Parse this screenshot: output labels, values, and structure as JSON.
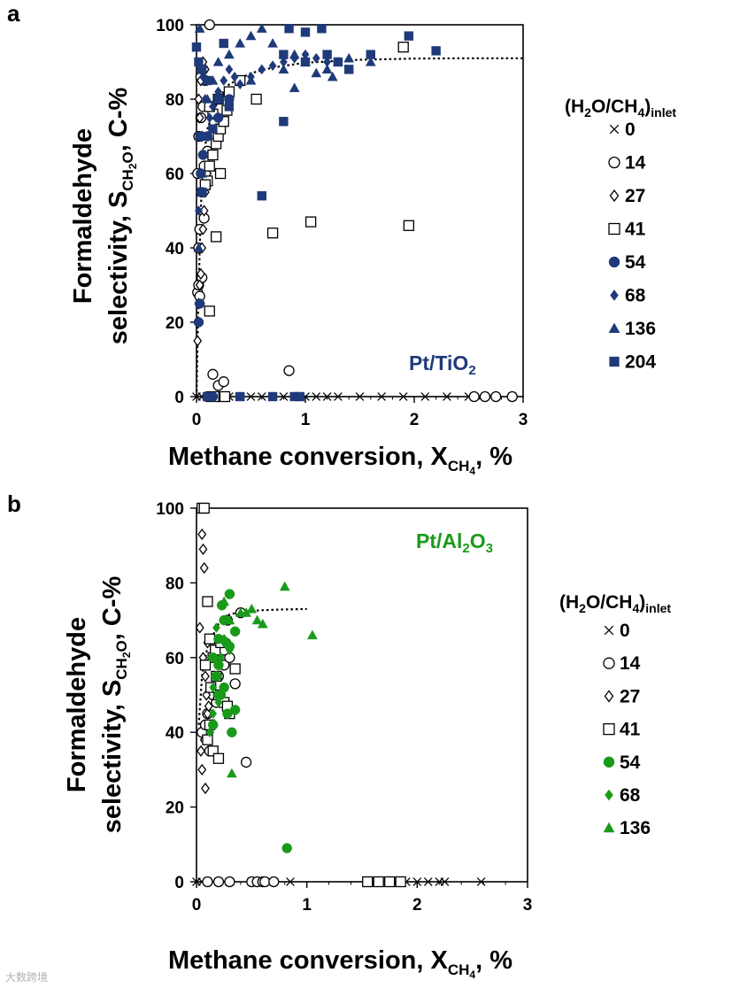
{
  "colors": {
    "tio2": "#1f3a7a",
    "al2o3": "#1a9a1a",
    "ink": "#000000"
  },
  "legend_title": {
    "prefix": "(H",
    "s1": "2",
    "mid": "O/CH",
    "s2": "4",
    "close": ")",
    "sub": "inlet"
  },
  "watermark": "大数跨境",
  "chart_data": [
    {
      "panel_label": "a",
      "type": "scatter",
      "title": "",
      "catalyst": {
        "base": "Pt/TiO",
        "sub": "2",
        "sub2": ""
      },
      "xlabel": {
        "main": "Methane conversion, X",
        "sub": "CH",
        "subsub": "4",
        "tail": ", %"
      },
      "ylabel": {
        "line1": "Formaldehyde",
        "line2_main": "selectivity, S",
        "line2_sub": "CH",
        "line2_subsub": "2",
        "line2_subtail": "O",
        "line2_tail": ", C-%"
      },
      "xlim": [
        0,
        3
      ],
      "ylim": [
        0,
        100
      ],
      "xticks": [
        0,
        1,
        2,
        3
      ],
      "yticks": [
        0,
        20,
        40,
        60,
        80,
        100
      ],
      "trendline": [
        [
          0,
          0
        ],
        [
          0.02,
          30
        ],
        [
          0.05,
          60
        ],
        [
          0.1,
          72
        ],
        [
          0.2,
          80
        ],
        [
          0.3,
          84
        ],
        [
          0.5,
          87
        ],
        [
          0.7,
          88.5
        ],
        [
          1.0,
          89.8
        ],
        [
          1.5,
          90.6
        ],
        [
          2.0,
          90.9
        ],
        [
          2.5,
          91
        ],
        [
          3.0,
          91
        ]
      ],
      "series": [
        {
          "name": "0",
          "marker": "x",
          "color": "#000000",
          "x": [
            0.0,
            0.05,
            0.1,
            0.3,
            0.5,
            0.6,
            0.7,
            0.8,
            0.9,
            1.0,
            1.1,
            1.2,
            1.3,
            1.5,
            1.7,
            1.9,
            2.1,
            2.3,
            2.5,
            2.7,
            2.9
          ],
          "y": [
            0,
            0,
            0,
            0,
            0,
            0,
            0,
            0,
            0,
            0,
            0,
            0,
            0,
            0,
            0,
            0,
            0,
            0,
            0,
            0,
            0
          ]
        },
        {
          "name": "14",
          "marker": "circle-open",
          "color": "#000000",
          "x": [
            0.01,
            0.02,
            0.03,
            0.05,
            0.07,
            0.1,
            0.02,
            0.04,
            0.06,
            0.08,
            0.12,
            0.15,
            0.2,
            0.25,
            0.85,
            0.03,
            0.05,
            0.07,
            0.02,
            0.01,
            0.04,
            0.06,
            2.55,
            2.65,
            2.75,
            2.9,
            0.1,
            0.2
          ],
          "y": [
            28,
            30,
            45,
            55,
            62,
            66,
            70,
            75,
            78,
            85,
            100,
            6,
            3,
            4,
            7,
            27,
            32,
            48,
            40,
            60,
            86,
            88,
            0,
            0,
            0,
            0,
            0,
            0
          ]
        },
        {
          "name": "27",
          "marker": "diamond-open",
          "color": "#000000",
          "x": [
            0.01,
            0.02,
            0.03,
            0.04,
            0.05,
            0.06,
            0.07,
            0.08,
            0.1,
            0.12,
            0.05,
            0.03,
            0.02,
            0.04,
            0.08,
            0.06
          ],
          "y": [
            15,
            25,
            30,
            33,
            40,
            45,
            50,
            55,
            60,
            65,
            70,
            75,
            80,
            85,
            88,
            90
          ]
        },
        {
          "name": "41",
          "marker": "square-open",
          "color": "#000000",
          "x": [
            0.1,
            0.12,
            0.15,
            0.18,
            0.2,
            0.22,
            0.25,
            0.15,
            0.12,
            0.2,
            0.3,
            0.4,
            0.55,
            0.7,
            1.05,
            1.95,
            1.9,
            0.18,
            0.22,
            0.28,
            0.12,
            0.08,
            0.26,
            0.16
          ],
          "y": [
            58,
            62,
            65,
            68,
            70,
            72,
            74,
            76,
            78,
            80,
            82,
            85,
            80,
            44,
            47,
            46,
            94,
            43,
            60,
            77,
            23,
            57,
            0,
            0
          ]
        },
        {
          "name": "54",
          "marker": "circle-filled",
          "color": "#1f3a7a",
          "x": [
            0.02,
            0.03,
            0.05,
            0.04,
            0.06,
            0.1,
            0.2,
            0.3,
            0.15
          ],
          "y": [
            20,
            25,
            55,
            60,
            65,
            70,
            75,
            80,
            0
          ]
        },
        {
          "name": "68",
          "marker": "diamond-filled",
          "color": "#1f3a7a",
          "x": [
            0.02,
            0.03,
            0.05,
            0.07,
            0.1,
            0.12,
            0.15,
            0.2,
            0.25,
            0.3,
            0.35,
            0.4,
            0.5,
            0.6,
            0.7,
            0.8,
            0.9,
            1.0,
            1.1,
            1.2,
            0.06,
            0.08
          ],
          "y": [
            50,
            55,
            60,
            65,
            70,
            75,
            78,
            82,
            85,
            88,
            86,
            84,
            86,
            88,
            89,
            90,
            91,
            92,
            91,
            90,
            86,
            80
          ]
        },
        {
          "name": "136",
          "marker": "triangle-filled",
          "color": "#1f3a7a",
          "x": [
            0.02,
            0.05,
            0.1,
            0.15,
            0.2,
            0.3,
            0.4,
            0.5,
            0.6,
            0.7,
            0.8,
            0.9,
            1.0,
            1.1,
            1.2,
            1.3,
            1.4,
            1.6,
            0.03,
            0.5,
            0.9,
            1.25,
            0.05
          ],
          "y": [
            40,
            70,
            80,
            85,
            90,
            92,
            95,
            97,
            99,
            95,
            88,
            92,
            90,
            87,
            88,
            90,
            91,
            90,
            99,
            85,
            83,
            86,
            60
          ]
        },
        {
          "name": "204",
          "marker": "square-filled",
          "color": "#1f3a7a",
          "x": [
            0.0,
            0.02,
            0.05,
            0.1,
            0.2,
            0.3,
            0.6,
            0.8,
            0.85,
            1.0,
            1.15,
            1.3,
            1.6,
            1.95,
            2.2,
            0.03,
            0.05,
            0.1,
            0.12,
            0.9,
            0.95,
            1.2,
            1.4,
            0.15,
            0.25,
            0.4,
            0.7,
            0.8,
            1.0
          ],
          "y": [
            94,
            90,
            88,
            85,
            80,
            78,
            54,
            74,
            99,
            98,
            99,
            90,
            92,
            97,
            93,
            70,
            55,
            0,
            0,
            0,
            0,
            92,
            88,
            72,
            95,
            0,
            0,
            92,
            90
          ]
        }
      ]
    },
    {
      "panel_label": "b",
      "type": "scatter",
      "title": "",
      "catalyst": {
        "base": "Pt/Al",
        "sub": "2",
        "mid": "O",
        "sub2": "3"
      },
      "xlabel": {
        "main": "Methane conversion, X",
        "sub": "CH",
        "subsub": "4",
        "tail": ", %"
      },
      "ylabel": {
        "line1": "Formaldehyde",
        "line2_main": "selectivity, S",
        "line2_sub": "CH",
        "line2_subsub": "2",
        "line2_subtail": "O",
        "line2_tail": ", C-%"
      },
      "xlim": [
        0,
        3
      ],
      "ylim": [
        0,
        100
      ],
      "xticks": [
        0,
        1,
        2,
        3
      ],
      "yticks": [
        0,
        20,
        40,
        60,
        80,
        100
      ],
      "trendline": [
        [
          0.02,
          42
        ],
        [
          0.05,
          55
        ],
        [
          0.1,
          63
        ],
        [
          0.2,
          69
        ],
        [
          0.3,
          71.5
        ],
        [
          0.4,
          72.3
        ],
        [
          0.6,
          72.7
        ],
        [
          0.8,
          72.9
        ],
        [
          1.0,
          73
        ]
      ],
      "series": [
        {
          "name": "0",
          "marker": "x",
          "color": "#000000",
          "x": [
            0.0,
            0.05,
            0.1,
            0.2,
            0.3,
            0.5,
            0.6,
            0.85,
            1.55,
            1.6,
            1.65,
            1.7,
            1.75,
            1.8,
            1.9,
            2.0,
            2.1,
            2.2,
            2.25,
            2.58
          ],
          "y": [
            0,
            0,
            0,
            0,
            0,
            0,
            0,
            0,
            0,
            0,
            0,
            0,
            0,
            0,
            0,
            0,
            0,
            0,
            0,
            0
          ]
        },
        {
          "name": "14",
          "marker": "circle-open",
          "color": "#000000",
          "x": [
            0.05,
            0.1,
            0.15,
            0.2,
            0.25,
            0.3,
            0.35,
            0.4,
            0.45,
            0.12,
            0.18,
            0.22,
            0.08,
            0.28,
            0.1,
            0.2,
            0.3,
            0.5,
            0.55,
            0.6,
            0.62,
            0.7,
            0.25
          ],
          "y": [
            40,
            45,
            50,
            55,
            58,
            60,
            53,
            72,
            32,
            35,
            48,
            63,
            42,
            70,
            0,
            0,
            0,
            0,
            0,
            0,
            0,
            0,
            62
          ]
        },
        {
          "name": "27",
          "marker": "diamond-open",
          "color": "#000000",
          "x": [
            0.05,
            0.06,
            0.07,
            0.08,
            0.09,
            0.1,
            0.12,
            0.04,
            0.05,
            0.06,
            0.07,
            0.08,
            0.1,
            0.03,
            0.11
          ],
          "y": [
            93,
            89,
            84,
            55,
            50,
            45,
            40,
            35,
            30,
            60,
            38,
            25,
            64,
            68,
            47
          ]
        },
        {
          "name": "41",
          "marker": "square-open",
          "color": "#000000",
          "x": [
            0.05,
            0.07,
            0.1,
            0.12,
            0.15,
            0.18,
            0.2,
            0.25,
            0.3,
            0.12,
            0.1,
            0.15,
            0.2,
            0.08,
            0.13,
            0.17,
            0.22,
            0.28,
            0.35,
            1.55,
            1.65,
            1.75,
            1.85
          ],
          "y": [
            100,
            100,
            75,
            65,
            60,
            55,
            50,
            48,
            45,
            42,
            38,
            35,
            33,
            58,
            52,
            62,
            64,
            47,
            57,
            0,
            0,
            0,
            0
          ]
        },
        {
          "name": "54",
          "marker": "circle-filled",
          "color": "#1a9a1a",
          "x": [
            0.15,
            0.2,
            0.25,
            0.3,
            0.35,
            0.18,
            0.22,
            0.28,
            0.32,
            0.35,
            0.15,
            0.2,
            0.25,
            0.3,
            0.82,
            0.23,
            0.27
          ],
          "y": [
            60,
            65,
            70,
            77,
            67,
            55,
            50,
            45,
            40,
            46,
            42,
            58,
            52,
            63,
            9,
            74,
            64
          ]
        },
        {
          "name": "68",
          "marker": "diamond-filled",
          "color": "#1a9a1a",
          "x": [
            0.12,
            0.15,
            0.18,
            0.2,
            0.22,
            0.25,
            0.28,
            0.3,
            0.15,
            0.2,
            0.18
          ],
          "y": [
            40,
            45,
            50,
            55,
            60,
            65,
            70,
            62,
            52,
            48,
            68
          ]
        },
        {
          "name": "136",
          "marker": "triangle-filled",
          "color": "#1a9a1a",
          "x": [
            0.25,
            0.3,
            0.4,
            0.5,
            0.55,
            0.6,
            0.8,
            1.05,
            0.32,
            0.45
          ],
          "y": [
            75,
            70,
            72,
            73,
            70,
            69,
            79,
            66,
            29,
            72
          ]
        }
      ]
    }
  ]
}
